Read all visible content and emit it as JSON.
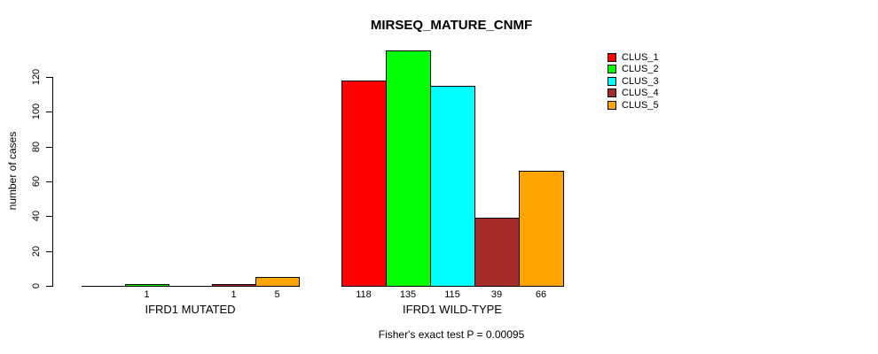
{
  "title": "MIRSEQ_MATURE_CNMF",
  "footer": "Fisher's exact test P = 0.00095",
  "y_axis": {
    "label": "number of cases",
    "ticks": [
      0,
      20,
      40,
      60,
      80,
      100,
      120
    ]
  },
  "legend": {
    "position": "right",
    "entries": [
      {
        "label": "CLUS_1",
        "color": "#FF0000"
      },
      {
        "label": "CLUS_2",
        "color": "#00FF00"
      },
      {
        "label": "CLUS_3",
        "color": "#00FFFF"
      },
      {
        "label": "CLUS_4",
        "color": "#A52A2A"
      },
      {
        "label": "CLUS_5",
        "color": "#FFA500"
      }
    ]
  },
  "chart_data": {
    "type": "bar",
    "title": "MIRSEQ_MATURE_CNMF",
    "xlabel": "",
    "ylabel": "number of cases",
    "categories": [
      "IFRD1 MUTATED",
      "IFRD1 WILD-TYPE"
    ],
    "series": [
      {
        "name": "CLUS_1",
        "color": "#FF0000",
        "values": [
          0,
          118
        ]
      },
      {
        "name": "CLUS_2",
        "color": "#00FF00",
        "values": [
          1,
          135
        ]
      },
      {
        "name": "CLUS_3",
        "color": "#00FFFF",
        "values": [
          0,
          115
        ]
      },
      {
        "name": "CLUS_4",
        "color": "#A52A2A",
        "values": [
          1,
          39
        ]
      },
      {
        "name": "CLUS_5",
        "color": "#FFA500",
        "values": [
          5,
          66
        ]
      }
    ],
    "bar_value_labels_shown_when_nonzero": true,
    "ylim": [
      0,
      120
    ],
    "grid": false,
    "legend_position": "right",
    "annotation": "Fisher's exact test P = 0.00095"
  }
}
